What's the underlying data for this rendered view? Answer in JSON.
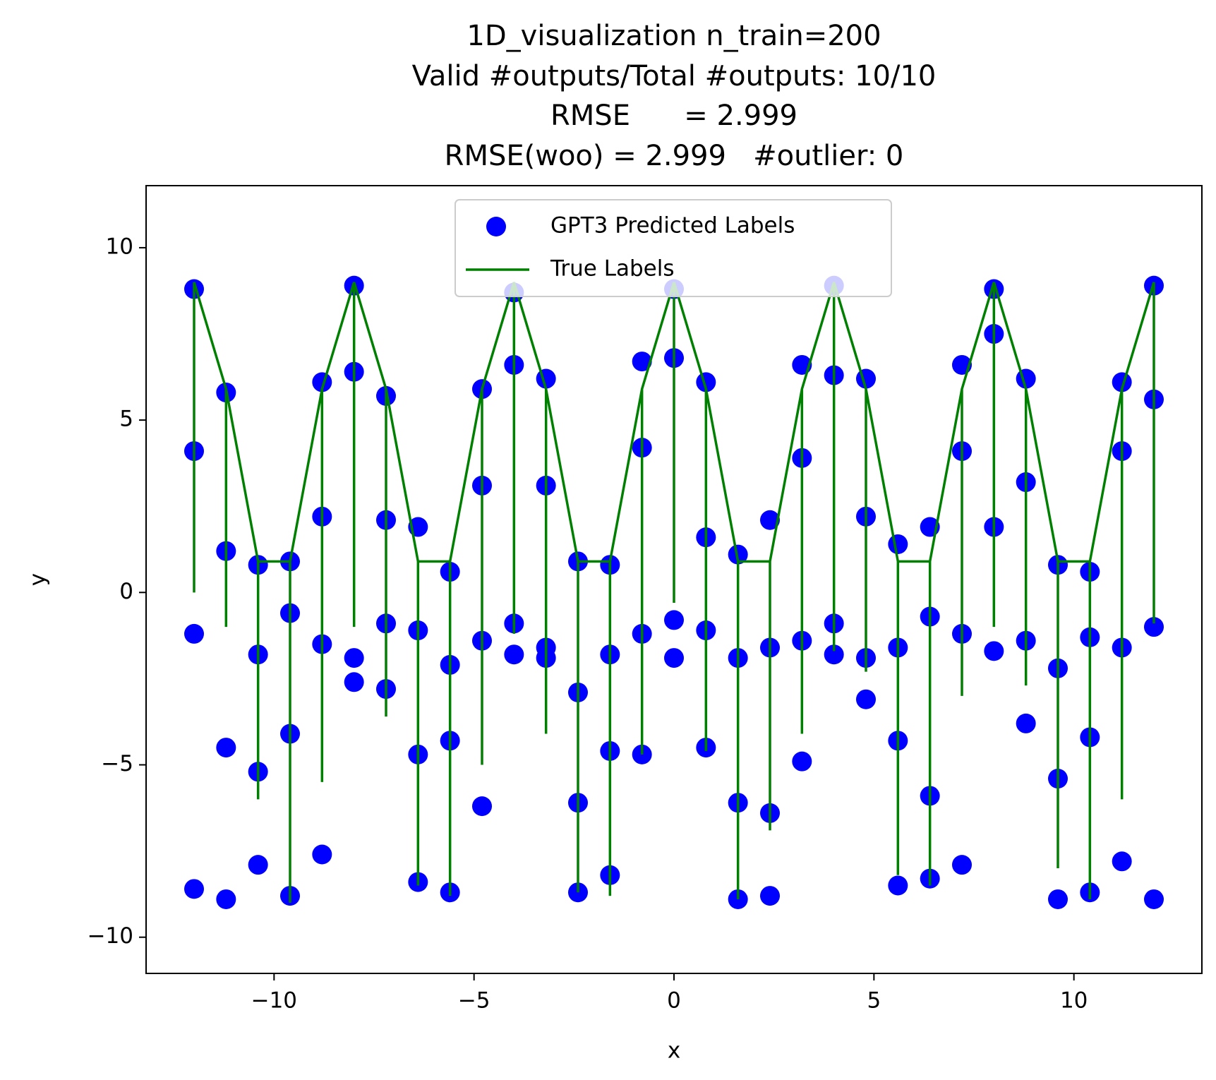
{
  "chart_data": {
    "type": "scatter",
    "title": [
      "1D_visualization  n_train=200",
      "Valid #outputs/Total #outputs: 10/10",
      "RMSE      = 2.999",
      "RMSE(woo) = 2.999   #outlier: 0"
    ],
    "xlabel": "x",
    "ylabel": "y",
    "xlim": [
      -13.2,
      13.2
    ],
    "ylim": [
      -11.05,
      11.8
    ],
    "xticks": [
      {
        "value": -10,
        "label": "−10"
      },
      {
        "value": -5,
        "label": "−5"
      },
      0,
      5,
      10
    ],
    "yticks": [
      {
        "value": -10,
        "label": "−10"
      },
      {
        "value": -5,
        "label": "−5"
      },
      0,
      5,
      10
    ],
    "grid": false,
    "legend": "upper center",
    "series": [
      {
        "name": "GPT3 Predicted Labels",
        "type": "scatter",
        "color": "#0000ff",
        "x": [
          -12,
          -12,
          -12,
          -12,
          -11.2,
          -11.2,
          -11.2,
          -11.2,
          -10.4,
          -10.4,
          -10.4,
          -10.4,
          -9.6,
          -9.6,
          -9.6,
          -9.6,
          -8.8,
          -8.8,
          -8.8,
          -8.8,
          -8,
          -8,
          -8,
          -8,
          -7.2,
          -7.2,
          -7.2,
          -7.2,
          -6.4,
          -6.4,
          -6.4,
          -6.4,
          -5.6,
          -5.6,
          -5.6,
          -5.6,
          -4.8,
          -4.8,
          -4.8,
          -4.8,
          -4,
          -4,
          -4,
          -4,
          -3.2,
          -3.2,
          -3.2,
          -3.2,
          -2.4,
          -2.4,
          -2.4,
          -2.4,
          -1.6,
          -1.6,
          -1.6,
          -1.6,
          -0.8,
          -0.8,
          -0.8,
          -0.8,
          0,
          0,
          0,
          0,
          0.8,
          0.8,
          0.8,
          0.8,
          1.6,
          1.6,
          1.6,
          1.6,
          2.4,
          2.4,
          2.4,
          2.4,
          3.2,
          3.2,
          3.2,
          3.2,
          4,
          4,
          4,
          4,
          4.8,
          4.8,
          4.8,
          4.8,
          5.6,
          5.6,
          5.6,
          5.6,
          6.4,
          6.4,
          6.4,
          6.4,
          7.2,
          7.2,
          7.2,
          7.2,
          8,
          8,
          8,
          8,
          8.8,
          8.8,
          8.8,
          8.8,
          9.6,
          9.6,
          9.6,
          9.6,
          10.4,
          10.4,
          10.4,
          10.4,
          11.2,
          11.2,
          11.2,
          11.2,
          12,
          12,
          12,
          12
        ],
        "values": [
          8.8,
          4.1,
          -1.2,
          -8.6,
          5.8,
          1.2,
          -4.5,
          -8.9,
          0.8,
          -1.8,
          -5.2,
          -7.9,
          0.9,
          -0.6,
          -4.1,
          -8.8,
          6.1,
          2.2,
          -1.5,
          -7.6,
          8.9,
          6.4,
          -1.9,
          -2.6,
          5.7,
          2.1,
          -0.9,
          -2.8,
          1.9,
          -1.1,
          -4.7,
          -8.4,
          0.6,
          -2.1,
          -4.3,
          -8.7,
          5.9,
          3.1,
          -1.4,
          -6.2,
          8.7,
          6.6,
          -0.9,
          -1.8,
          6.2,
          3.1,
          -1.6,
          -1.9,
          0.9,
          -2.9,
          -6.1,
          -8.7,
          0.8,
          -1.8,
          -4.6,
          -8.2,
          6.7,
          4.2,
          -1.2,
          -4.7,
          8.8,
          6.8,
          -0.8,
          -1.9,
          6.1,
          1.6,
          -1.1,
          -4.5,
          1.1,
          -1.9,
          -6.1,
          -8.9,
          2.1,
          -1.6,
          -6.4,
          -8.8,
          6.6,
          3.9,
          -1.4,
          -4.9,
          8.9,
          6.3,
          -0.9,
          -1.8,
          6.2,
          2.2,
          -1.9,
          -3.1,
          1.4,
          -1.6,
          -4.3,
          -8.5,
          1.9,
          -0.7,
          -5.9,
          -8.3,
          6.6,
          4.1,
          -1.2,
          -7.9,
          8.8,
          7.5,
          1.9,
          -1.7,
          6.2,
          3.2,
          -1.4,
          -3.8,
          0.8,
          -2.2,
          -5.4,
          -8.9,
          0.6,
          -1.3,
          -4.2,
          -8.7,
          6.1,
          4.1,
          -1.6,
          -7.8,
          8.9,
          5.6,
          -1.0,
          -8.9
        ]
      },
      {
        "name": "True Labels",
        "type": "line",
        "color": "#008000",
        "x": [
          -12,
          -12,
          -12,
          -11.2,
          -11.2,
          -11.2,
          -10.4,
          -10.4,
          -10.4,
          -9.6,
          -9.6,
          -9.6,
          -8.8,
          -8.8,
          -8.8,
          -8,
          -8,
          -8,
          -7.2,
          -7.2,
          -7.2,
          -6.4,
          -6.4,
          -6.4,
          -5.6,
          -5.6,
          -5.6,
          -4.8,
          -4.8,
          -4.8,
          -4,
          -4,
          -4,
          -3.2,
          -3.2,
          -3.2,
          -2.4,
          -2.4,
          -2.4,
          -1.6,
          -1.6,
          -1.6,
          -0.8,
          -0.8,
          -0.8,
          0,
          0,
          0,
          0.8,
          0.8,
          0.8,
          1.6,
          1.6,
          1.6,
          2.4,
          2.4,
          2.4,
          3.2,
          3.2,
          3.2,
          4,
          4,
          4,
          4.8,
          4.8,
          4.8,
          5.6,
          5.6,
          5.6,
          6.4,
          6.4,
          6.4,
          7.2,
          7.2,
          7.2,
          8,
          8,
          8,
          8.8,
          8.8,
          8.8,
          9.6,
          9.6,
          9.6,
          10.4,
          10.4,
          10.4,
          11.2,
          11.2,
          11.2,
          12,
          12,
          12
        ],
        "values": [
          9,
          0,
          9,
          5.9,
          -1,
          5.9,
          0.9,
          -6,
          0.9,
          0.9,
          -9,
          0.9,
          5.9,
          -5.5,
          5.9,
          9,
          -1,
          9,
          5.9,
          -3.6,
          5.9,
          0.9,
          -8.5,
          0.9,
          0.9,
          -8.8,
          0.9,
          5.9,
          -5,
          5.9,
          9,
          -1.2,
          9,
          5.9,
          -4.1,
          5.9,
          0.9,
          -8.7,
          0.9,
          0.9,
          -8.8,
          0.9,
          5.9,
          -4.7,
          5.9,
          9,
          -0.3,
          9,
          5.9,
          -4.6,
          5.9,
          0.9,
          -8.9,
          0.9,
          0.9,
          -6.9,
          0.9,
          5.9,
          -4.1,
          5.9,
          9,
          -1.7,
          9,
          5.9,
          -2.3,
          5.9,
          0.9,
          -8.2,
          0.9,
          0.9,
          -8.5,
          0.9,
          5.9,
          -3,
          5.9,
          9,
          -1,
          9,
          5.9,
          -2.7,
          5.9,
          0.9,
          -8,
          0.9,
          0.9,
          -8.9,
          0.9,
          5.9,
          -6,
          5.9,
          9,
          -0.9,
          9
        ]
      }
    ]
  }
}
